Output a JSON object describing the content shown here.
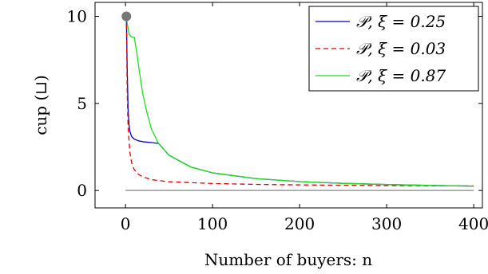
{
  "chart_data": {
    "type": "line",
    "xlabel": "Number of buyers: n",
    "ylabel": "cup (⊔)",
    "xlim": [
      -35,
      410
    ],
    "ylim": [
      -1.0,
      10.8
    ],
    "xticks": [
      0,
      100,
      200,
      300,
      400
    ],
    "yticks": [
      0,
      5,
      10
    ],
    "grid": false,
    "legend_position": "top-right",
    "series": [
      {
        "name": "𝒫, ξ = 0.25",
        "color": "#0000cc",
        "dash": "solid",
        "x": [
          1,
          2,
          3,
          4,
          5,
          7,
          10,
          15,
          20,
          30,
          38,
          50,
          75,
          100,
          150,
          200,
          250,
          300,
          350,
          400
        ],
        "y": [
          10,
          6.8,
          4.6,
          3.8,
          3.4,
          3.1,
          2.95,
          2.85,
          2.8,
          2.75,
          2.7,
          2.02,
          1.35,
          1.01,
          0.68,
          0.51,
          0.41,
          0.34,
          0.29,
          0.25
        ]
      },
      {
        "name": "𝒫, ξ = 0.03",
        "color": "#dd0000",
        "dash": "dashed",
        "x": [
          1,
          2,
          3,
          5,
          7,
          10,
          15,
          20,
          30,
          50,
          100,
          150,
          200,
          250,
          300,
          350,
          400
        ],
        "y": [
          10,
          5.5,
          3.6,
          2.2,
          1.6,
          1.2,
          0.92,
          0.78,
          0.62,
          0.5,
          0.4,
          0.35,
          0.32,
          0.3,
          0.28,
          0.27,
          0.26
        ]
      },
      {
        "name": "𝒫, ξ = 0.87",
        "color": "#22dd22",
        "dash": "solid",
        "x": [
          1,
          2,
          3,
          4,
          6,
          8,
          10,
          13,
          16,
          20,
          25,
          30,
          38,
          50,
          75,
          100,
          150,
          200,
          250,
          300,
          350,
          400
        ],
        "y": [
          10,
          9.6,
          9.3,
          9.0,
          8.85,
          8.8,
          8.8,
          7.9,
          6.8,
          5.5,
          4.4,
          3.5,
          2.7,
          2.02,
          1.35,
          1.01,
          0.68,
          0.51,
          0.41,
          0.34,
          0.29,
          0.25
        ]
      }
    ],
    "baseline": {
      "y": 0,
      "x_range": [
        0,
        400
      ],
      "color": "#999999"
    },
    "marker": {
      "x": 1,
      "y": 10,
      "color": "#777777"
    }
  }
}
